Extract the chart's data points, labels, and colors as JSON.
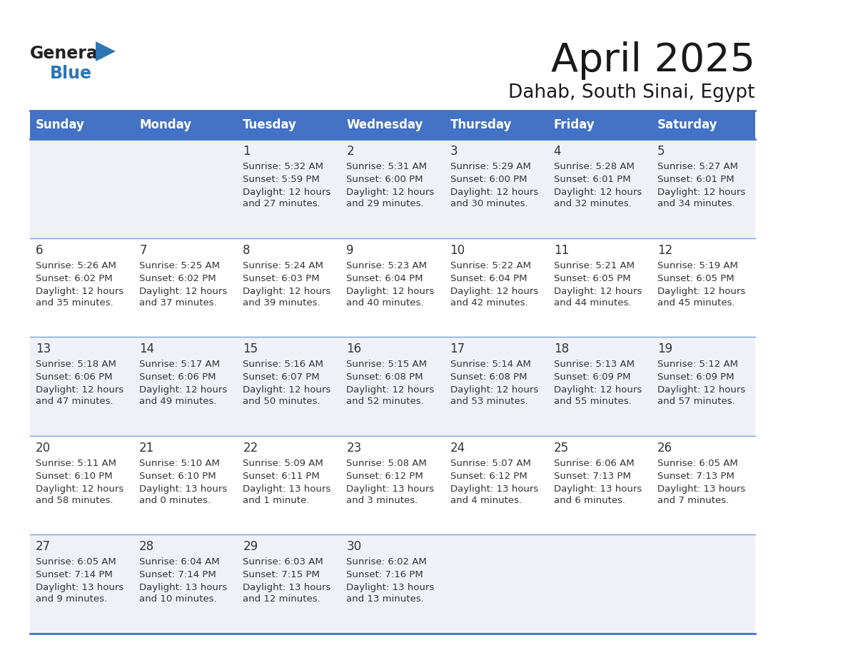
{
  "title": "April 2025",
  "subtitle": "Dahab, South Sinai, Egypt",
  "header_bg": "#4472C4",
  "header_text_color": "#FFFFFF",
  "cell_bg_odd": "#EEF2F8",
  "cell_bg_even": "#FFFFFF",
  "day_headers": [
    "Sunday",
    "Monday",
    "Tuesday",
    "Wednesday",
    "Thursday",
    "Friday",
    "Saturday"
  ],
  "grid_color": "#4472C4",
  "row_line_color": "#7A9FD4",
  "text_color": "#333333",
  "logo_text_color": "#1a1a1a",
  "logo_blue_color": "#2E75B6",
  "days": [
    {
      "date": 1,
      "col": 2,
      "row": 0,
      "sunrise": "5:32 AM",
      "sunset": "5:59 PM",
      "daylight_h": "12 hours",
      "daylight_m": "and 27 minutes."
    },
    {
      "date": 2,
      "col": 3,
      "row": 0,
      "sunrise": "5:31 AM",
      "sunset": "6:00 PM",
      "daylight_h": "12 hours",
      "daylight_m": "and 29 minutes."
    },
    {
      "date": 3,
      "col": 4,
      "row": 0,
      "sunrise": "5:29 AM",
      "sunset": "6:00 PM",
      "daylight_h": "12 hours",
      "daylight_m": "and 30 minutes."
    },
    {
      "date": 4,
      "col": 5,
      "row": 0,
      "sunrise": "5:28 AM",
      "sunset": "6:01 PM",
      "daylight_h": "12 hours",
      "daylight_m": "and 32 minutes."
    },
    {
      "date": 5,
      "col": 6,
      "row": 0,
      "sunrise": "5:27 AM",
      "sunset": "6:01 PM",
      "daylight_h": "12 hours",
      "daylight_m": "and 34 minutes."
    },
    {
      "date": 6,
      "col": 0,
      "row": 1,
      "sunrise": "5:26 AM",
      "sunset": "6:02 PM",
      "daylight_h": "12 hours",
      "daylight_m": "and 35 minutes."
    },
    {
      "date": 7,
      "col": 1,
      "row": 1,
      "sunrise": "5:25 AM",
      "sunset": "6:02 PM",
      "daylight_h": "12 hours",
      "daylight_m": "and 37 minutes."
    },
    {
      "date": 8,
      "col": 2,
      "row": 1,
      "sunrise": "5:24 AM",
      "sunset": "6:03 PM",
      "daylight_h": "12 hours",
      "daylight_m": "and 39 minutes."
    },
    {
      "date": 9,
      "col": 3,
      "row": 1,
      "sunrise": "5:23 AM",
      "sunset": "6:04 PM",
      "daylight_h": "12 hours",
      "daylight_m": "and 40 minutes."
    },
    {
      "date": 10,
      "col": 4,
      "row": 1,
      "sunrise": "5:22 AM",
      "sunset": "6:04 PM",
      "daylight_h": "12 hours",
      "daylight_m": "and 42 minutes."
    },
    {
      "date": 11,
      "col": 5,
      "row": 1,
      "sunrise": "5:21 AM",
      "sunset": "6:05 PM",
      "daylight_h": "12 hours",
      "daylight_m": "and 44 minutes."
    },
    {
      "date": 12,
      "col": 6,
      "row": 1,
      "sunrise": "5:19 AM",
      "sunset": "6:05 PM",
      "daylight_h": "12 hours",
      "daylight_m": "and 45 minutes."
    },
    {
      "date": 13,
      "col": 0,
      "row": 2,
      "sunrise": "5:18 AM",
      "sunset": "6:06 PM",
      "daylight_h": "12 hours",
      "daylight_m": "and 47 minutes."
    },
    {
      "date": 14,
      "col": 1,
      "row": 2,
      "sunrise": "5:17 AM",
      "sunset": "6:06 PM",
      "daylight_h": "12 hours",
      "daylight_m": "and 49 minutes."
    },
    {
      "date": 15,
      "col": 2,
      "row": 2,
      "sunrise": "5:16 AM",
      "sunset": "6:07 PM",
      "daylight_h": "12 hours",
      "daylight_m": "and 50 minutes."
    },
    {
      "date": 16,
      "col": 3,
      "row": 2,
      "sunrise": "5:15 AM",
      "sunset": "6:08 PM",
      "daylight_h": "12 hours",
      "daylight_m": "and 52 minutes."
    },
    {
      "date": 17,
      "col": 4,
      "row": 2,
      "sunrise": "5:14 AM",
      "sunset": "6:08 PM",
      "daylight_h": "12 hours",
      "daylight_m": "and 53 minutes."
    },
    {
      "date": 18,
      "col": 5,
      "row": 2,
      "sunrise": "5:13 AM",
      "sunset": "6:09 PM",
      "daylight_h": "12 hours",
      "daylight_m": "and 55 minutes."
    },
    {
      "date": 19,
      "col": 6,
      "row": 2,
      "sunrise": "5:12 AM",
      "sunset": "6:09 PM",
      "daylight_h": "12 hours",
      "daylight_m": "and 57 minutes."
    },
    {
      "date": 20,
      "col": 0,
      "row": 3,
      "sunrise": "5:11 AM",
      "sunset": "6:10 PM",
      "daylight_h": "12 hours",
      "daylight_m": "and 58 minutes."
    },
    {
      "date": 21,
      "col": 1,
      "row": 3,
      "sunrise": "5:10 AM",
      "sunset": "6:10 PM",
      "daylight_h": "13 hours",
      "daylight_m": "and 0 minutes."
    },
    {
      "date": 22,
      "col": 2,
      "row": 3,
      "sunrise": "5:09 AM",
      "sunset": "6:11 PM",
      "daylight_h": "13 hours",
      "daylight_m": "and 1 minute."
    },
    {
      "date": 23,
      "col": 3,
      "row": 3,
      "sunrise": "5:08 AM",
      "sunset": "6:12 PM",
      "daylight_h": "13 hours",
      "daylight_m": "and 3 minutes."
    },
    {
      "date": 24,
      "col": 4,
      "row": 3,
      "sunrise": "5:07 AM",
      "sunset": "6:12 PM",
      "daylight_h": "13 hours",
      "daylight_m": "and 4 minutes."
    },
    {
      "date": 25,
      "col": 5,
      "row": 3,
      "sunrise": "6:06 AM",
      "sunset": "7:13 PM",
      "daylight_h": "13 hours",
      "daylight_m": "and 6 minutes."
    },
    {
      "date": 26,
      "col": 6,
      "row": 3,
      "sunrise": "6:05 AM",
      "sunset": "7:13 PM",
      "daylight_h": "13 hours",
      "daylight_m": "and 7 minutes."
    },
    {
      "date": 27,
      "col": 0,
      "row": 4,
      "sunrise": "6:05 AM",
      "sunset": "7:14 PM",
      "daylight_h": "13 hours",
      "daylight_m": "and 9 minutes."
    },
    {
      "date": 28,
      "col": 1,
      "row": 4,
      "sunrise": "6:04 AM",
      "sunset": "7:14 PM",
      "daylight_h": "13 hours",
      "daylight_m": "and 10 minutes."
    },
    {
      "date": 29,
      "col": 2,
      "row": 4,
      "sunrise": "6:03 AM",
      "sunset": "7:15 PM",
      "daylight_h": "13 hours",
      "daylight_m": "and 12 minutes."
    },
    {
      "date": 30,
      "col": 3,
      "row": 4,
      "sunrise": "6:02 AM",
      "sunset": "7:16 PM",
      "daylight_h": "13 hours",
      "daylight_m": "and 13 minutes."
    }
  ]
}
